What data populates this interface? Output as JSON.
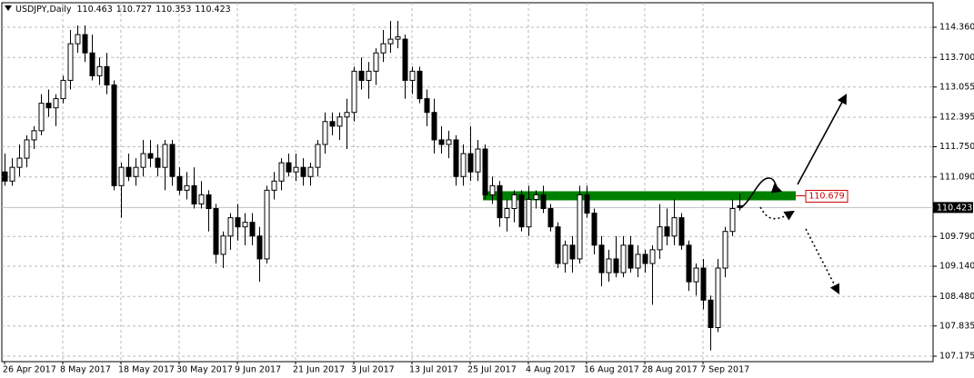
{
  "chart_data": {
    "type": "candlestick",
    "title": "USDJPY,Daily",
    "categories": [
      "26 Apr 2017",
      null,
      null,
      null,
      null,
      null,
      null,
      null,
      "8 May 2017",
      null,
      null,
      null,
      null,
      null,
      null,
      null,
      "18 May 2017",
      null,
      null,
      null,
      null,
      null,
      null,
      null,
      "30 May 2017",
      null,
      null,
      null,
      null,
      null,
      null,
      null,
      "9 Jun 2017",
      null,
      null,
      null,
      null,
      null,
      null,
      null,
      "21 Jun 2017",
      null,
      null,
      null,
      null,
      null,
      null,
      null,
      "3 Jul 2017",
      null,
      null,
      null,
      null,
      null,
      null,
      null,
      "13 Jul 2017",
      null,
      null,
      null,
      null,
      null,
      null,
      null,
      "25 Jul 2017",
      null,
      null,
      null,
      null,
      null,
      null,
      null,
      "4 Aug 2017",
      null,
      null,
      null,
      null,
      null,
      null,
      null,
      "16 Aug 2017",
      null,
      null,
      null,
      null,
      null,
      null,
      null,
      "28 Aug 2017",
      null,
      null,
      null,
      null,
      null,
      null,
      null,
      "7 Sep 2017",
      null,
      null,
      null,
      null,
      null
    ],
    "open": [
      111.2,
      111.0,
      111.3,
      111.5,
      111.9,
      112.1,
      112.7,
      112.6,
      112.8,
      113.2,
      114.0,
      114.2,
      113.8,
      113.3,
      113.5,
      113.1,
      110.9,
      111.3,
      111.1,
      111.3,
      111.6,
      111.5,
      111.3,
      111.8,
      111.1,
      110.8,
      110.9,
      110.5,
      110.7,
      110.4,
      109.4,
      109.8,
      110.2,
      110.0,
      110.1,
      109.8,
      109.3,
      110.8,
      111.0,
      111.4,
      111.2,
      111.3,
      111.1,
      111.3,
      111.8,
      112.3,
      112.2,
      112.4,
      112.5,
      113.4,
      113.2,
      113.4,
      113.8,
      114.0,
      114.1,
      114.1,
      113.2,
      113.4,
      112.8,
      112.5,
      111.9,
      111.8,
      111.9,
      111.1,
      111.6,
      111.2,
      111.7,
      110.7,
      110.9,
      110.2,
      110.4,
      110.7,
      110.0,
      110.6,
      110.7,
      110.4,
      110.0,
      109.2,
      109.6,
      109.3,
      110.7,
      110.3,
      109.6,
      109.0,
      109.3,
      109.0,
      109.6,
      109.1,
      109.4,
      109.2,
      109.5,
      110.0,
      109.8,
      110.2,
      109.6,
      108.8,
      109.1,
      108.4,
      107.8,
      109.1,
      109.9,
      110.463
    ],
    "high": [
      111.6,
      111.5,
      111.8,
      112.0,
      112.2,
      112.9,
      113.0,
      112.9,
      113.3,
      114.3,
      114.4,
      114.4,
      114.2,
      113.7,
      113.8,
      113.2,
      111.4,
      111.6,
      111.5,
      111.9,
      111.9,
      111.8,
      111.9,
      111.9,
      111.3,
      111.2,
      111.3,
      111.0,
      110.8,
      110.5,
      109.9,
      110.3,
      110.5,
      110.3,
      110.3,
      110.0,
      110.9,
      111.2,
      111.5,
      111.6,
      111.6,
      111.5,
      111.4,
      111.9,
      112.5,
      112.5,
      112.5,
      112.8,
      113.5,
      113.7,
      113.6,
      113.9,
      114.3,
      114.5,
      114.5,
      114.2,
      113.5,
      113.5,
      113.0,
      112.8,
      112.2,
      112.1,
      112.0,
      111.8,
      112.2,
      111.9,
      111.8,
      111.1,
      111.0,
      110.6,
      110.8,
      110.8,
      110.9,
      110.8,
      110.9,
      110.5,
      110.1,
      109.7,
      109.8,
      110.9,
      110.9,
      110.4,
      109.8,
      109.5,
      109.8,
      109.8,
      109.8,
      109.6,
      109.5,
      109.6,
      110.5,
      110.4,
      110.6,
      110.3,
      109.7,
      109.2,
      109.3,
      108.5,
      109.3,
      110.0,
      110.6,
      110.727
    ],
    "low": [
      110.9,
      110.9,
      111.1,
      111.3,
      111.7,
      112.0,
      112.4,
      112.2,
      112.7,
      113.0,
      113.8,
      113.6,
      113.2,
      113.1,
      112.9,
      110.8,
      110.2,
      111.0,
      110.9,
      111.1,
      111.3,
      111.1,
      110.8,
      110.9,
      110.7,
      110.6,
      110.4,
      110.4,
      109.9,
      109.2,
      109.1,
      109.5,
      109.7,
      109.6,
      109.6,
      108.8,
      109.2,
      110.6,
      110.8,
      111.1,
      111.0,
      110.9,
      110.9,
      111.1,
      111.6,
      112.0,
      111.9,
      111.7,
      112.3,
      113.0,
      112.8,
      113.1,
      113.6,
      113.8,
      113.9,
      112.8,
      112.9,
      112.7,
      112.2,
      111.6,
      111.6,
      111.5,
      110.9,
      110.9,
      111.0,
      111.0,
      110.6,
      110.5,
      110.0,
      109.9,
      110.1,
      109.9,
      109.8,
      110.4,
      110.3,
      109.9,
      109.1,
      109.0,
      109.0,
      109.2,
      110.2,
      109.4,
      108.7,
      108.8,
      108.9,
      108.9,
      109.0,
      108.9,
      109.0,
      108.3,
      109.3,
      109.6,
      109.6,
      109.5,
      108.6,
      108.5,
      108.2,
      107.3,
      107.7,
      108.9,
      109.8,
      110.353
    ],
    "close": [
      111.0,
      111.3,
      111.5,
      111.9,
      112.1,
      112.7,
      112.6,
      112.8,
      113.2,
      114.0,
      114.2,
      113.8,
      113.3,
      113.5,
      113.1,
      110.9,
      111.3,
      111.1,
      111.3,
      111.6,
      111.5,
      111.3,
      111.8,
      111.1,
      110.8,
      110.9,
      110.5,
      110.7,
      110.4,
      109.4,
      109.8,
      110.2,
      110.0,
      110.1,
      109.8,
      109.3,
      110.8,
      111.0,
      111.4,
      111.2,
      111.3,
      111.1,
      111.3,
      111.8,
      112.3,
      112.2,
      112.4,
      112.5,
      113.4,
      113.2,
      113.4,
      113.8,
      114.0,
      114.1,
      114.15,
      113.2,
      113.4,
      112.8,
      112.5,
      111.9,
      111.8,
      111.9,
      111.1,
      111.6,
      111.2,
      111.7,
      110.7,
      110.9,
      110.2,
      110.4,
      110.7,
      110.0,
      110.6,
      110.7,
      110.4,
      110.0,
      109.2,
      109.6,
      109.3,
      110.7,
      110.3,
      109.6,
      109.0,
      109.3,
      109.0,
      109.6,
      109.1,
      109.4,
      109.2,
      109.5,
      110.0,
      109.8,
      110.2,
      109.6,
      108.8,
      109.1,
      108.4,
      107.8,
      109.1,
      109.9,
      110.4,
      110.423
    ],
    "up_color": "#ffffff",
    "down_color": "#000000",
    "ylim": [
      107.056,
      114.896
    ],
    "yticks": [
      {
        "value": 114.36,
        "label": "114.360"
      },
      {
        "value": 113.7,
        "label": "113.700"
      },
      113.055,
      112.395,
      {
        "value": 111.75,
        "label": "111.750"
      },
      {
        "value": 111.09,
        "label": "111.090"
      },
      {
        "value": 109.79,
        "label": "109.790"
      },
      {
        "value": 109.14,
        "label": "109.140"
      },
      {
        "value": 108.48,
        "label": "108.480"
      },
      107.835,
      107.175
    ],
    "grid": true,
    "level": 110.679,
    "level_color": "#008000"
  }
}
